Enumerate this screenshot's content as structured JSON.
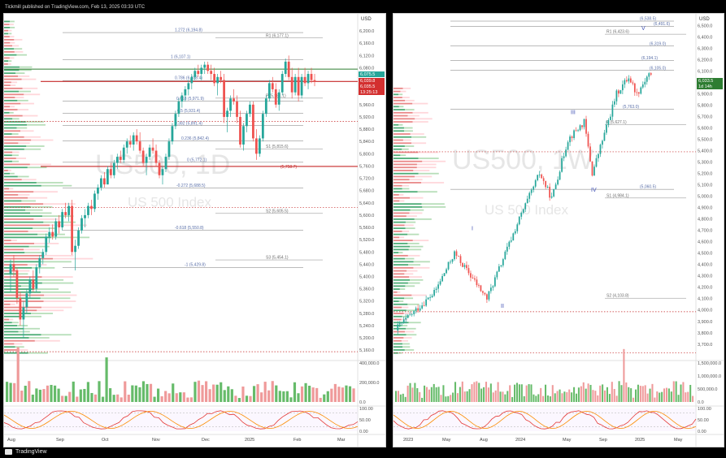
{
  "header": "Tickmill published on TradingView.com, Feb 13, 2025 03:33 UTC",
  "footer": "TradingView",
  "colors": {
    "bull": "#26a69a",
    "bear": "#ef5350",
    "fib": "#777777",
    "fibLabel": "#5a6fa8",
    "pivot": "#888888",
    "support": "#c62828",
    "resistance": "#2e7d32",
    "watermark": "#e6e6e6"
  },
  "chart_data": [
    {
      "type": "candlestick",
      "symbol": "US500, 1D",
      "subtitle": "US 500 Index",
      "currency": "USD",
      "x_ticks": [
        "Aug",
        "Sep",
        "Oct",
        "Nov",
        "Dec",
        "2025",
        "Feb",
        "Mar"
      ],
      "y_ticks": [
        5160,
        5200,
        5240,
        5280,
        5320,
        5360,
        5400,
        5440,
        5480,
        5520,
        5560,
        5600,
        5640,
        5680,
        5720,
        5760,
        5800,
        5840,
        5880,
        5920,
        5960,
        6000,
        6040,
        6080,
        6120,
        6160,
        6200
      ],
      "ylim": [
        5150,
        6240
      ],
      "price_labels": [
        {
          "text": "6,075.5",
          "color": "#26a69a"
        },
        {
          "text": "6,039.8",
          "color": "#d32f2f"
        },
        {
          "text": "6,035.5",
          "color": "#d32f2f"
        },
        {
          "text": "13:25:13",
          "color": "#d32f2f"
        }
      ],
      "fib_levels": [
        {
          "label": "1.272 (6,194.8)",
          "value": 6194.8
        },
        {
          "label": "1 (6,107.1)",
          "value": 6107.1
        },
        {
          "label": "0.786 (6,038.4)",
          "value": 6038.4
        },
        {
          "label": "0.618 (5,971.9)",
          "value": 5971.9
        },
        {
          "label": "0.5 (5,931.4)",
          "value": 5931.4
        },
        {
          "label": "0.382 (5,891.4)",
          "value": 5891.4
        },
        {
          "label": "0.236 (5,842.4)",
          "value": 5842.4
        },
        {
          "label": "0 (5,772.1)",
          "value": 5772.1
        },
        {
          "label": "-0.272 (5,688.5)",
          "value": 5688.5
        },
        {
          "label": "-0.618 (5,550.8)",
          "value": 5550.8
        },
        {
          "label": "-1 (5,429.8)",
          "value": 5429.8
        }
      ],
      "pivot_levels": [
        {
          "label": "R1 (6,177.1)",
          "value": 6177.1
        },
        {
          "label": "P (5,981.1)",
          "value": 5981.1
        },
        {
          "label": "S1 (5,815.6)",
          "value": 5815.6
        },
        {
          "label": "S2 (5,605.5)",
          "value": 5605.5
        },
        {
          "label": "S3 (5,454.1)",
          "value": 5454.1
        }
      ],
      "support_levels": [
        {
          "label": "(5,758.7)",
          "value": 5758.7
        },
        {
          "label": "",
          "value": 6035.5
        }
      ],
      "resistance_levels": [
        {
          "label": "",
          "value": 6075.5
        }
      ],
      "dotted_levels": [
        5905,
        5625,
        5155
      ],
      "candles": [
        [
          5410,
          5455,
          5350,
          5440
        ],
        [
          5440,
          5470,
          5400,
          5420
        ],
        [
          5420,
          5430,
          5310,
          5330
        ],
        [
          5330,
          5350,
          5240,
          5260
        ],
        [
          5260,
          5320,
          5200,
          5300
        ],
        [
          5300,
          5360,
          5280,
          5345
        ],
        [
          5345,
          5400,
          5330,
          5390
        ],
        [
          5390,
          5420,
          5350,
          5360
        ],
        [
          5360,
          5440,
          5350,
          5430
        ],
        [
          5430,
          5470,
          5410,
          5460
        ],
        [
          5460,
          5490,
          5440,
          5480
        ],
        [
          5480,
          5540,
          5470,
          5530
        ],
        [
          5530,
          5560,
          5510,
          5545
        ],
        [
          5545,
          5570,
          5520,
          5530
        ],
        [
          5530,
          5590,
          5520,
          5580
        ],
        [
          5580,
          5600,
          5540,
          5560
        ],
        [
          5560,
          5620,
          5550,
          5610
        ],
        [
          5610,
          5640,
          5590,
          5600
        ],
        [
          5600,
          5640,
          5580,
          5630
        ],
        [
          5630,
          5650,
          5470,
          5480
        ],
        [
          5480,
          5520,
          5420,
          5500
        ],
        [
          5500,
          5560,
          5490,
          5550
        ],
        [
          5550,
          5600,
          5540,
          5590
        ],
        [
          5590,
          5620,
          5560,
          5600
        ],
        [
          5600,
          5640,
          5590,
          5630
        ],
        [
          5630,
          5650,
          5600,
          5620
        ],
        [
          5620,
          5680,
          5610,
          5670
        ],
        [
          5670,
          5700,
          5650,
          5690
        ],
        [
          5690,
          5730,
          5680,
          5720
        ],
        [
          5720,
          5740,
          5690,
          5700
        ],
        [
          5700,
          5760,
          5700,
          5750
        ],
        [
          5750,
          5770,
          5720,
          5730
        ],
        [
          5730,
          5780,
          5720,
          5770
        ],
        [
          5770,
          5800,
          5750,
          5790
        ],
        [
          5790,
          5810,
          5770,
          5780
        ],
        [
          5780,
          5830,
          5770,
          5820
        ],
        [
          5820,
          5850,
          5800,
          5840
        ],
        [
          5840,
          5860,
          5820,
          5830
        ],
        [
          5830,
          5870,
          5810,
          5860
        ],
        [
          5860,
          5880,
          5830,
          5840
        ],
        [
          5840,
          5870,
          5800,
          5810
        ],
        [
          5810,
          5820,
          5760,
          5770
        ],
        [
          5770,
          5800,
          5730,
          5790
        ],
        [
          5790,
          5830,
          5780,
          5820
        ],
        [
          5820,
          5850,
          5800,
          5810
        ],
        [
          5810,
          5830,
          5760,
          5770
        ],
        [
          5770,
          5780,
          5720,
          5730
        ],
        [
          5730,
          5760,
          5700,
          5750
        ],
        [
          5750,
          5800,
          5740,
          5790
        ],
        [
          5790,
          5850,
          5780,
          5840
        ],
        [
          5840,
          5900,
          5830,
          5890
        ],
        [
          5890,
          5940,
          5880,
          5930
        ],
        [
          5930,
          5980,
          5920,
          5970
        ],
        [
          5970,
          6000,
          5950,
          5990
        ],
        [
          5990,
          6020,
          5970,
          6010
        ],
        [
          6010,
          6040,
          5990,
          6030
        ],
        [
          6030,
          6060,
          6010,
          6050
        ],
        [
          6050,
          6080,
          6040,
          6070
        ],
        [
          6070,
          6090,
          6050,
          6060
        ],
        [
          6060,
          6090,
          6040,
          6080
        ],
        [
          6080,
          6100,
          6060,
          6090
        ],
        [
          6090,
          6100,
          6060,
          6070
        ],
        [
          6070,
          6090,
          6040,
          6060
        ],
        [
          6060,
          6080,
          6020,
          6030
        ],
        [
          6030,
          6060,
          5990,
          6050
        ],
        [
          6050,
          6070,
          6030,
          6040
        ],
        [
          6040,
          6060,
          5900,
          5920
        ],
        [
          5920,
          5950,
          5870,
          5940
        ],
        [
          5940,
          5990,
          5920,
          5980
        ],
        [
          5980,
          6010,
          5960,
          5970
        ],
        [
          5970,
          5990,
          5900,
          5920
        ],
        [
          5920,
          5940,
          5820,
          5830
        ],
        [
          5830,
          5900,
          5810,
          5890
        ],
        [
          5890,
          5940,
          5870,
          5930
        ],
        [
          5930,
          5970,
          5920,
          5960
        ],
        [
          5960,
          5970,
          5840,
          5850
        ],
        [
          5850,
          5880,
          5780,
          5800
        ],
        [
          5800,
          5860,
          5790,
          5850
        ],
        [
          5850,
          5940,
          5840,
          5930
        ],
        [
          5930,
          5990,
          5920,
          5980
        ],
        [
          5980,
          6040,
          5970,
          6030
        ],
        [
          6030,
          6050,
          6000,
          6010
        ],
        [
          6010,
          6030,
          5950,
          5960
        ],
        [
          5960,
          6010,
          5940,
          6000
        ],
        [
          6000,
          6070,
          5990,
          6060
        ],
        [
          6060,
          6110,
          6050,
          6100
        ],
        [
          6100,
          6120,
          6040,
          6050
        ],
        [
          6050,
          6080,
          5980,
          6000
        ],
        [
          6000,
          6060,
          5990,
          6050
        ],
        [
          6050,
          6080,
          5970,
          5990
        ],
        [
          5990,
          6060,
          5980,
          6050
        ],
        [
          6050,
          6080,
          6020,
          6030
        ],
        [
          6030,
          6070,
          6010,
          6060
        ],
        [
          6060,
          6080,
          6030,
          6040
        ],
        [
          6040,
          6060,
          6020,
          6035
        ]
      ],
      "volume_ticks": [
        "400,000.0",
        "200,000.0",
        "0.0"
      ],
      "osc_ticks": [
        "100.00",
        "50.00",
        "0.00"
      ]
    },
    {
      "type": "candlestick",
      "symbol": "US500, 1W",
      "subtitle": "US 500 Index",
      "currency": "USD",
      "x_ticks": [
        "2023",
        "May",
        "Aug",
        "2024",
        "May",
        "Sep",
        "2025",
        "May"
      ],
      "y_ticks": [
        3700,
        3800,
        3900,
        4000,
        4100,
        4200,
        4300,
        4400,
        4500,
        4600,
        4700,
        4800,
        4900,
        5000,
        5100,
        5200,
        5300,
        5400,
        5500,
        5600,
        5700,
        5800,
        5900,
        6000,
        6100,
        6200,
        6300,
        6400,
        6500
      ],
      "ylim": [
        3620,
        6560
      ],
      "price_labels": [
        {
          "text": "6,033.5",
          "color": "#2e7d32"
        },
        {
          "text": "1d 14h",
          "color": "#2e7d32"
        }
      ],
      "fib_levels": [
        {
          "label": "(6,538.5)",
          "value": 6538.5
        },
        {
          "label": "(6,491.6)",
          "value": 6491.6
        },
        {
          "label": "(6,319.0)",
          "value": 6319.0
        },
        {
          "label": "(6,194.1)",
          "value": 6194.1
        },
        {
          "label": "(6,105.0)",
          "value": 6105.0
        },
        {
          "label": "(5,763.0)",
          "value": 5763.0
        },
        {
          "label": "(5,060.5)",
          "value": 5060.5
        }
      ],
      "pivot_levels": [
        {
          "label": "R1 (6,423.6)",
          "value": 6423.6
        },
        {
          "label": "P (5,627.1)",
          "value": 5627.1
        },
        {
          "label": "S1 (4,984.1)",
          "value": 4984.1
        },
        {
          "label": "S2 (4,103.8)",
          "value": 4103.8
        }
      ],
      "wave_labels": [
        "I",
        "II",
        "III",
        "IV",
        "V"
      ],
      "dotted_levels": [
        5390,
        3985,
        3625
      ],
      "volume_ticks": [
        "1,500,000.0",
        "1,000,000.0",
        "500,000.0",
        "0.0"
      ],
      "osc_ticks": [
        "100.00",
        "50.00",
        "0.00"
      ]
    }
  ]
}
